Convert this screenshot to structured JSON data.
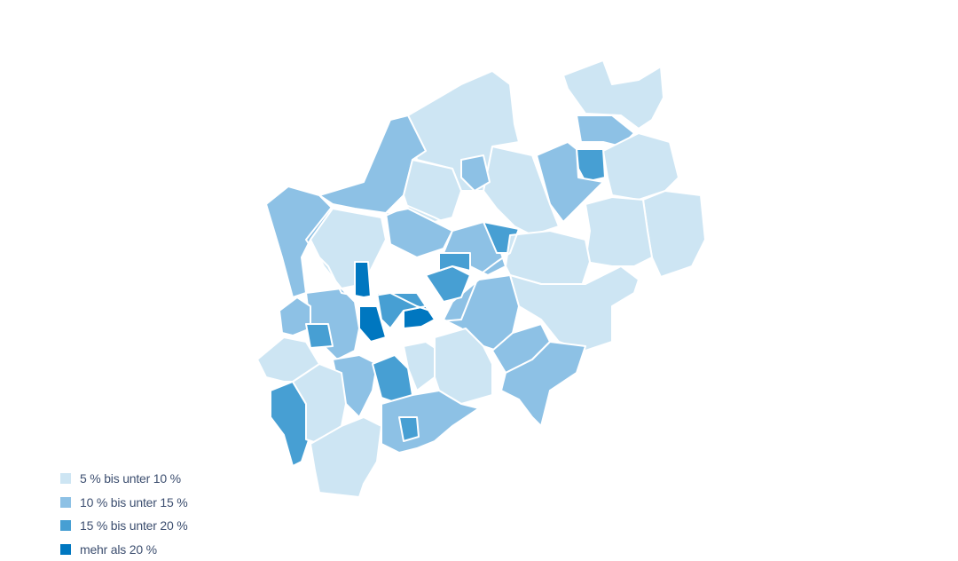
{
  "legend": [
    {
      "label": "5 % bis unter 10 %",
      "color": "#cde5f3"
    },
    {
      "label": "10 % bis unter 15 %",
      "color": "#8dc1e5"
    },
    {
      "label": "15 % bis unter 20 %",
      "color": "#479fd3"
    },
    {
      "label": "mehr als 20 %",
      "color": "#0077c0"
    }
  ],
  "outline_color": "#333333",
  "region_classes": [
    0,
    1,
    0,
    2,
    1,
    0,
    0,
    0,
    0,
    1,
    1,
    0,
    1,
    0,
    1,
    1,
    2,
    0,
    0,
    1,
    1,
    1,
    2,
    2,
    3,
    3,
    3,
    2,
    1,
    1,
    2,
    0,
    1,
    2,
    0,
    0,
    1,
    2,
    2,
    0,
    0
  ]
}
